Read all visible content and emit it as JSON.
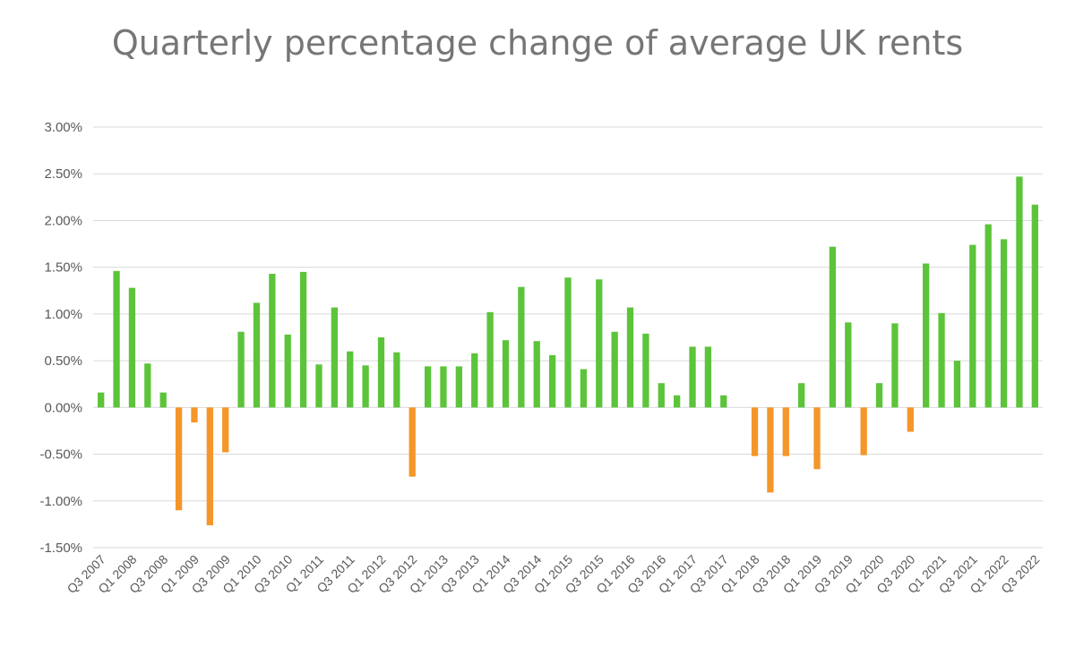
{
  "chart_data": {
    "type": "bar",
    "title": "Quarterly percentage change of average UK rents",
    "xlabel": "",
    "ylabel": "",
    "ylim": [
      -1.5,
      3.0
    ],
    "ytick_values": [
      -1.5,
      -1.0,
      -0.5,
      0.0,
      0.5,
      1.0,
      1.5,
      2.0,
      2.5,
      3.0
    ],
    "ytick_labels": [
      "-1.50%",
      "-1.00%",
      "-0.50%",
      "0.00%",
      "0.50%",
      "1.00%",
      "1.50%",
      "2.00%",
      "2.50%",
      "3.00%"
    ],
    "grid": true,
    "legend": "none",
    "positive_color": "#5cc43a",
    "negative_color": "#f5962a",
    "categories": [
      "Q3 2007",
      "Q4 2007",
      "Q1 2008",
      "Q2 2008",
      "Q3 2008",
      "Q4 2008",
      "Q1 2009",
      "Q2 2009",
      "Q3 2009",
      "Q4 2009",
      "Q1 2010",
      "Q2 2010",
      "Q3 2010",
      "Q4 2010",
      "Q1 2011",
      "Q2 2011",
      "Q3 2011",
      "Q4 2011",
      "Q1 2012",
      "Q2 2012",
      "Q3 2012",
      "Q4 2012",
      "Q1 2013",
      "Q2 2013",
      "Q3 2013",
      "Q4 2013",
      "Q1 2014",
      "Q2 2014",
      "Q3 2014",
      "Q4 2014",
      "Q1 2015",
      "Q2 2015",
      "Q3 2015",
      "Q4 2015",
      "Q1 2016",
      "Q2 2016",
      "Q3 2016",
      "Q4 2016",
      "Q1 2017",
      "Q2 2017",
      "Q3 2017",
      "Q4 2017",
      "Q1 2018",
      "Q2 2018",
      "Q3 2018",
      "Q4 2018",
      "Q1 2019",
      "Q2 2019",
      "Q3 2019",
      "Q4 2019",
      "Q1 2020",
      "Q2 2020",
      "Q3 2020",
      "Q4 2020",
      "Q1 2021",
      "Q2 2021",
      "Q3 2021",
      "Q4 2021",
      "Q1 2022",
      "Q2 2022",
      "Q3 2022"
    ],
    "visible_tick_labels": [
      "Q3 2007",
      "Q1 2008",
      "Q3 2008",
      "Q1 2009",
      "Q3 2009",
      "Q1 2010",
      "Q3 2010",
      "Q1 2011",
      "Q3 2011",
      "Q1 2012",
      "Q3 2012",
      "Q1 2013",
      "Q3 2013",
      "Q1 2014",
      "Q3 2014",
      "Q1 2015",
      "Q3 2015",
      "Q1 2016",
      "Q3 2016",
      "Q1 2017",
      "Q3 2017",
      "Q1 2018",
      "Q3 2018",
      "Q1 2019",
      "Q3 2019",
      "Q1 2020",
      "Q3 2020",
      "Q1 2021",
      "Q3 2021",
      "Q1 2022",
      "Q3 2022"
    ],
    "values": [
      0.16,
      1.46,
      1.28,
      0.47,
      0.16,
      -1.1,
      -0.16,
      -1.26,
      -0.48,
      0.81,
      1.12,
      1.43,
      0.78,
      1.45,
      0.46,
      1.07,
      0.6,
      0.45,
      0.75,
      0.59,
      -0.74,
      0.44,
      0.44,
      0.44,
      0.58,
      1.02,
      0.72,
      1.29,
      0.71,
      0.56,
      1.39,
      0.41,
      1.37,
      0.81,
      1.07,
      0.79,
      0.26,
      0.13,
      0.65,
      0.65,
      0.13,
      0.0,
      -0.52,
      -0.91,
      -0.52,
      0.26,
      -0.66,
      1.72,
      0.91,
      -0.51,
      0.26,
      0.9,
      -0.26,
      1.54,
      1.01,
      0.5,
      1.74,
      1.96,
      1.8,
      2.47,
      2.17
    ]
  }
}
